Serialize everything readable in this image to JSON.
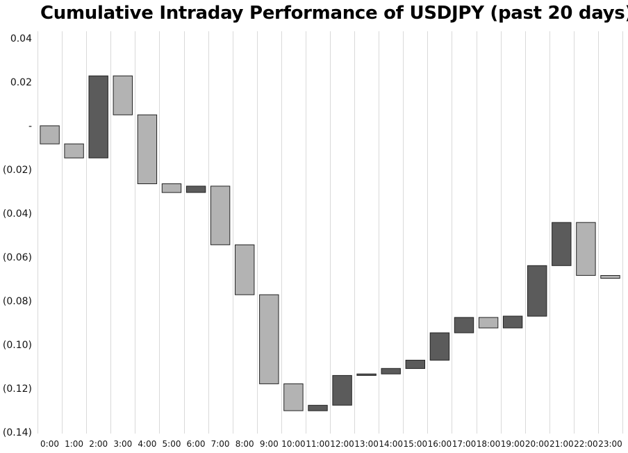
{
  "chart_data": {
    "type": "bar",
    "subtype": "floating-waterfall",
    "title": "Cumulative Intraday Performance of USDJPY (past 20 days)",
    "xlabel": "",
    "ylabel": "",
    "ylim": [
      -0.14,
      0.04
    ],
    "grid": "vertical",
    "legend": "none",
    "yticks": [
      0.04,
      0.02,
      0,
      -0.02,
      -0.04,
      -0.06,
      -0.08,
      -0.1,
      -0.12,
      -0.14
    ],
    "ytick_labels": [
      "0.04",
      "0.02",
      "-",
      "(0.02)",
      "(0.04)",
      "(0.06)",
      "(0.08)",
      "(0.10)",
      "(0.12)",
      "(0.14)"
    ],
    "categories": [
      "0:00",
      "1:00",
      "2:00",
      "3:00",
      "4:00",
      "5:00",
      "6:00",
      "7:00",
      "8:00",
      "9:00",
      "10:00",
      "11:00",
      "12:00",
      "13:00",
      "14:00",
      "15:00",
      "16:00",
      "17:00",
      "18:00",
      "19:00",
      "20:00",
      "21:00",
      "22:00",
      "23:00"
    ],
    "bars": [
      {
        "start": 0.0,
        "end": -0.0083,
        "direction": "down"
      },
      {
        "start": -0.0083,
        "end": -0.0147,
        "direction": "down"
      },
      {
        "start": -0.0147,
        "end": 0.0228,
        "direction": "up"
      },
      {
        "start": 0.0228,
        "end": 0.005,
        "direction": "down"
      },
      {
        "start": 0.005,
        "end": -0.0265,
        "direction": "down"
      },
      {
        "start": -0.0265,
        "end": -0.0305,
        "direction": "down"
      },
      {
        "start": -0.0305,
        "end": -0.0276,
        "direction": "up"
      },
      {
        "start": -0.0276,
        "end": -0.0544,
        "direction": "down"
      },
      {
        "start": -0.0544,
        "end": -0.0772,
        "direction": "down"
      },
      {
        "start": -0.0772,
        "end": -0.1179,
        "direction": "down"
      },
      {
        "start": -0.1179,
        "end": -0.1302,
        "direction": "down"
      },
      {
        "start": -0.1302,
        "end": -0.1277,
        "direction": "up"
      },
      {
        "start": -0.1277,
        "end": -0.1141,
        "direction": "up"
      },
      {
        "start": -0.1141,
        "end": -0.1134,
        "direction": "up"
      },
      {
        "start": -0.1134,
        "end": -0.1109,
        "direction": "up"
      },
      {
        "start": -0.1109,
        "end": -0.1071,
        "direction": "up"
      },
      {
        "start": -0.1071,
        "end": -0.0946,
        "direction": "up"
      },
      {
        "start": -0.0946,
        "end": -0.0876,
        "direction": "up"
      },
      {
        "start": -0.0876,
        "end": -0.0924,
        "direction": "down"
      },
      {
        "start": -0.0924,
        "end": -0.087,
        "direction": "up"
      },
      {
        "start": -0.087,
        "end": -0.0639,
        "direction": "up"
      },
      {
        "start": -0.0639,
        "end": -0.0442,
        "direction": "up"
      },
      {
        "start": -0.0442,
        "end": -0.0684,
        "direction": "down"
      },
      {
        "start": -0.0684,
        "end": -0.0697,
        "direction": "down"
      }
    ],
    "colors": {
      "up": "#5b5b5b",
      "down": "#b3b3b3",
      "outline": "#222222",
      "grid": "#d9d9d9"
    }
  }
}
